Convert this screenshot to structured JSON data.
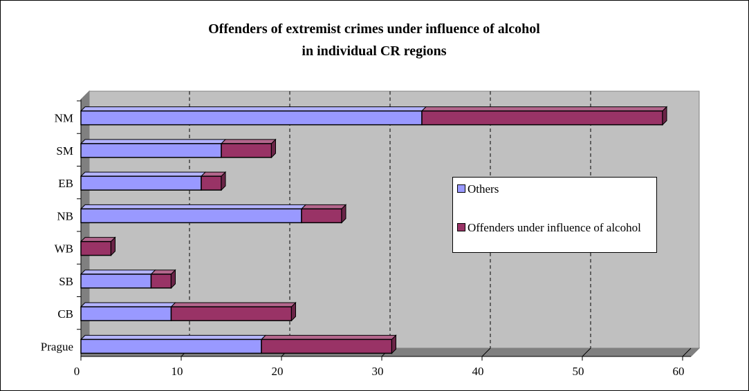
{
  "chart_data": {
    "type": "bar",
    "orientation": "horizontal",
    "stacked": true,
    "title": "Offenders of extremist crimes under influence of alcohol",
    "subtitle": "in individual CR regions",
    "categories": [
      "NM",
      "SM",
      "EB",
      "NB",
      "WB",
      "SB",
      "CB",
      "Prague"
    ],
    "series": [
      {
        "name": "Others",
        "color": "#9999ff",
        "values": [
          34,
          14,
          12,
          22,
          0,
          7,
          9,
          18
        ]
      },
      {
        "name": "Offenders under influence of alcohol",
        "color": "#993366",
        "values": [
          24,
          5,
          2,
          4,
          3,
          2,
          12,
          13
        ]
      }
    ],
    "xlim": [
      0,
      60
    ],
    "xticks": [
      0,
      10,
      20,
      30,
      40,
      50,
      60
    ],
    "grid": true,
    "legend_position": "right",
    "plot_background": "#c0c0c0"
  }
}
